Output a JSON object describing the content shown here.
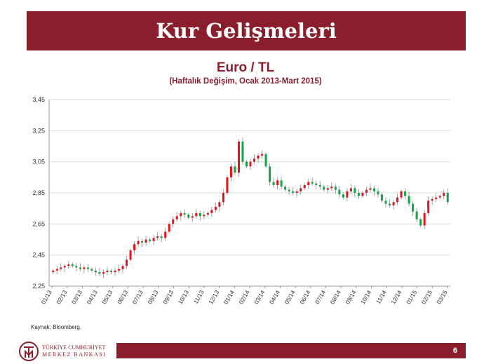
{
  "slide": {
    "title": "Kur Gelişmeleri",
    "source": "Kaynak: Bloomberg.",
    "page_number": "6",
    "bank_name_line1": "TÜRKİYE CUMHURİYET",
    "bank_name_line2": "MERKEZ BANKASI",
    "accent_color": "#8b1e2d"
  },
  "chart_data": {
    "type": "candlestick",
    "title": "Euro / TL",
    "subtitle": "(Haftalık Değişim, Ocak 2013-Mart 2015)",
    "ylim": [
      2.25,
      3.45
    ],
    "y_ticks": [
      "2,25",
      "2,45",
      "2,65",
      "2,85",
      "3,05",
      "3,25",
      "3,45"
    ],
    "x_ticks": [
      "01/13",
      "02/13",
      "03/13",
      "04/13",
      "05/13",
      "06/13",
      "07/13",
      "08/13",
      "09/13",
      "10/13",
      "11/13",
      "12/13",
      "01/14",
      "02/14",
      "03/14",
      "04/14",
      "05/14",
      "06/14",
      "07/14",
      "08/14",
      "09/14",
      "10/14",
      "11/14",
      "12/14",
      "01/15",
      "02/15",
      "03/15"
    ],
    "up_color": "#e3151c",
    "down_color": "#16a34a",
    "grid": true,
    "closes": [
      2.35,
      2.36,
      2.37,
      2.38,
      2.39,
      2.38,
      2.37,
      2.36,
      2.37,
      2.36,
      2.35,
      2.34,
      2.33,
      2.34,
      2.35,
      2.34,
      2.35,
      2.36,
      2.38,
      2.42,
      2.48,
      2.52,
      2.54,
      2.53,
      2.55,
      2.54,
      2.56,
      2.57,
      2.56,
      2.6,
      2.65,
      2.68,
      2.7,
      2.72,
      2.71,
      2.69,
      2.7,
      2.72,
      2.7,
      2.71,
      2.72,
      2.74,
      2.76,
      2.79,
      2.85,
      2.95,
      3.02,
      2.98,
      3.18,
      3.05,
      3.02,
      3.05,
      3.07,
      3.09,
      3.1,
      3.02,
      2.92,
      2.9,
      2.93,
      2.89,
      2.87,
      2.86,
      2.85,
      2.86,
      2.88,
      2.9,
      2.92,
      2.91,
      2.9,
      2.89,
      2.87,
      2.88,
      2.89,
      2.87,
      2.84,
      2.82,
      2.86,
      2.88,
      2.85,
      2.83,
      2.85,
      2.87,
      2.88,
      2.86,
      2.84,
      2.8,
      2.78,
      2.77,
      2.79,
      2.82,
      2.86,
      2.83,
      2.78,
      2.73,
      2.68,
      2.64,
      2.72,
      2.8,
      2.81,
      2.82,
      2.83,
      2.85,
      2.79
    ]
  }
}
